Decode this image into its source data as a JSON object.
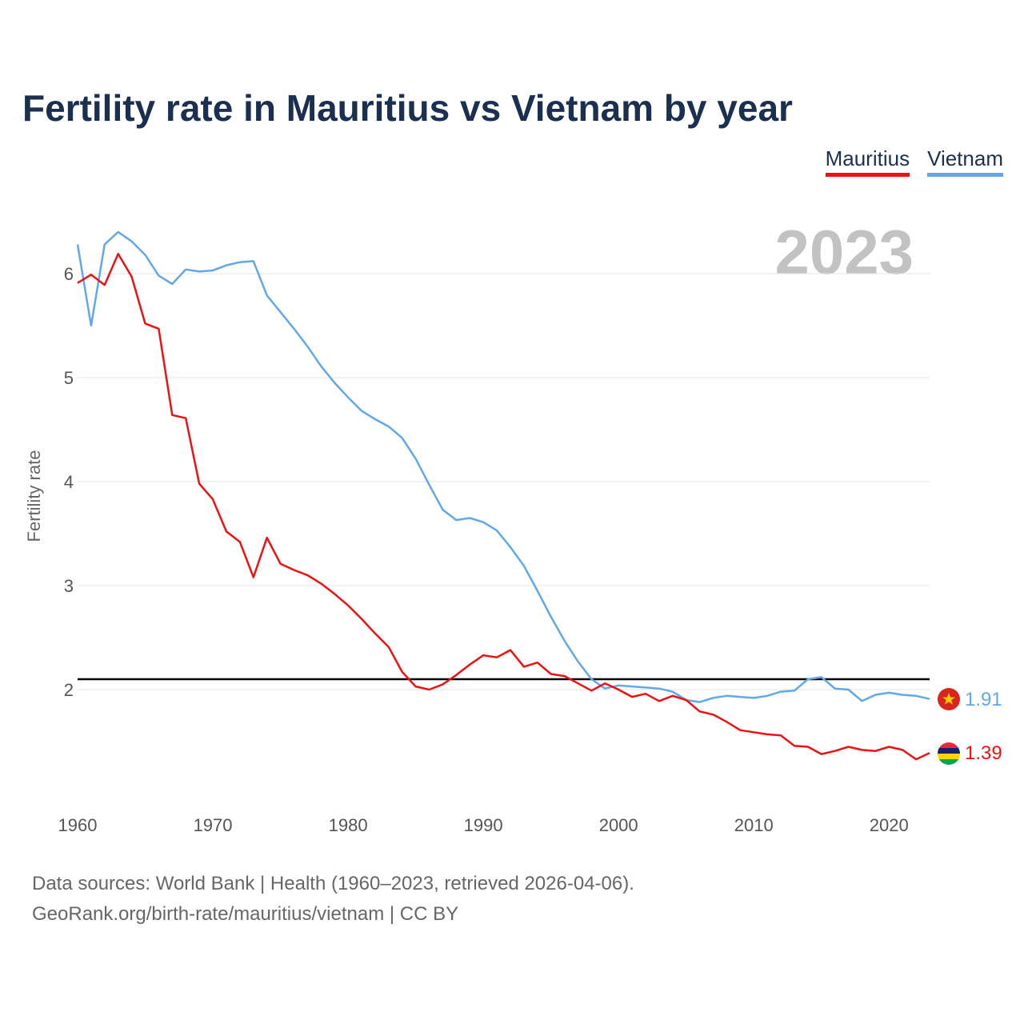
{
  "title": "Fertility rate in Mauritius vs Vietnam by year",
  "year_label": "2023",
  "legend": [
    {
      "label": "Mauritius",
      "color": "#ee1111"
    },
    {
      "label": "Vietnam",
      "color": "#62a8e8"
    }
  ],
  "footer": {
    "line1": "Data sources: World Bank | Health (1960–2023, retrieved 2026-04-06).",
    "line2": "GeoRank.org/birth-rate/mauritius/vietnam | CC BY"
  },
  "chart_data": {
    "type": "line",
    "title": "Fertility rate in Mauritius vs Vietnam by year",
    "xlabel": "",
    "ylabel": "Fertility rate",
    "xlim": [
      1960,
      2023
    ],
    "ylim": [
      1,
      6.5
    ],
    "x_ticks": [
      1960,
      1970,
      1980,
      1990,
      2000,
      2010,
      2020
    ],
    "y_ticks": [
      2,
      3,
      4,
      5,
      6
    ],
    "grid": true,
    "reference_line": {
      "y": 2.1,
      "color": "#000000"
    },
    "series": [
      {
        "name": "Mauritius",
        "color": "#ee1111",
        "end_label": "1.39",
        "flag": "mauritius-flag-icon",
        "x": [
          1960,
          1961,
          1962,
          1963,
          1964,
          1965,
          1966,
          1967,
          1968,
          1969,
          1970,
          1971,
          1972,
          1973,
          1974,
          1975,
          1976,
          1977,
          1978,
          1979,
          1980,
          1981,
          1982,
          1983,
          1984,
          1985,
          1986,
          1987,
          1988,
          1989,
          1990,
          1991,
          1992,
          1993,
          1994,
          1995,
          1996,
          1997,
          1998,
          1999,
          2000,
          2001,
          2002,
          2003,
          2004,
          2005,
          2006,
          2007,
          2008,
          2009,
          2010,
          2011,
          2012,
          2013,
          2014,
          2015,
          2016,
          2017,
          2018,
          2019,
          2020,
          2021,
          2022,
          2023
        ],
        "values": [
          5.91,
          5.99,
          5.89,
          6.19,
          5.97,
          5.52,
          5.47,
          4.64,
          4.61,
          3.98,
          3.83,
          3.52,
          3.42,
          3.08,
          3.46,
          3.21,
          3.15,
          3.1,
          3.02,
          2.92,
          2.81,
          2.68,
          2.54,
          2.41,
          2.17,
          2.03,
          2.0,
          2.05,
          2.14,
          2.24,
          2.33,
          2.31,
          2.38,
          2.22,
          2.26,
          2.15,
          2.13,
          2.06,
          1.99,
          2.06,
          2.0,
          1.93,
          1.96,
          1.89,
          1.94,
          1.9,
          1.79,
          1.76,
          1.69,
          1.61,
          1.59,
          1.57,
          1.56,
          1.46,
          1.45,
          1.38,
          1.41,
          1.45,
          1.42,
          1.41,
          1.45,
          1.42,
          1.33,
          1.39
        ]
      },
      {
        "name": "Vietnam",
        "color": "#62a8e8",
        "end_label": "1.91",
        "flag": "vietnam-flag-icon",
        "x": [
          1960,
          1961,
          1962,
          1963,
          1964,
          1965,
          1966,
          1967,
          1968,
          1969,
          1970,
          1971,
          1972,
          1973,
          1974,
          1975,
          1976,
          1977,
          1978,
          1979,
          1980,
          1981,
          1982,
          1983,
          1984,
          1985,
          1986,
          1987,
          1988,
          1989,
          1990,
          1991,
          1992,
          1993,
          1994,
          1995,
          1996,
          1997,
          1998,
          1999,
          2000,
          2001,
          2002,
          2003,
          2004,
          2005,
          2006,
          2007,
          2008,
          2009,
          2010,
          2011,
          2012,
          2013,
          2014,
          2015,
          2016,
          2017,
          2018,
          2019,
          2020,
          2021,
          2022,
          2023
        ],
        "values": [
          6.28,
          5.5,
          6.28,
          6.4,
          6.31,
          6.18,
          5.98,
          5.9,
          6.04,
          6.02,
          6.03,
          6.08,
          6.11,
          6.12,
          5.79,
          5.63,
          5.47,
          5.3,
          5.11,
          4.95,
          4.81,
          4.68,
          4.6,
          4.53,
          4.42,
          4.22,
          3.97,
          3.73,
          3.63,
          3.65,
          3.61,
          3.53,
          3.37,
          3.19,
          2.95,
          2.7,
          2.47,
          2.27,
          2.1,
          2.01,
          2.04,
          2.03,
          2.02,
          2.01,
          1.98,
          1.9,
          1.88,
          1.92,
          1.94,
          1.93,
          1.92,
          1.94,
          1.98,
          1.99,
          2.1,
          2.12,
          2.01,
          2.0,
          1.89,
          1.95,
          1.97,
          1.95,
          1.94,
          1.91
        ]
      }
    ]
  }
}
